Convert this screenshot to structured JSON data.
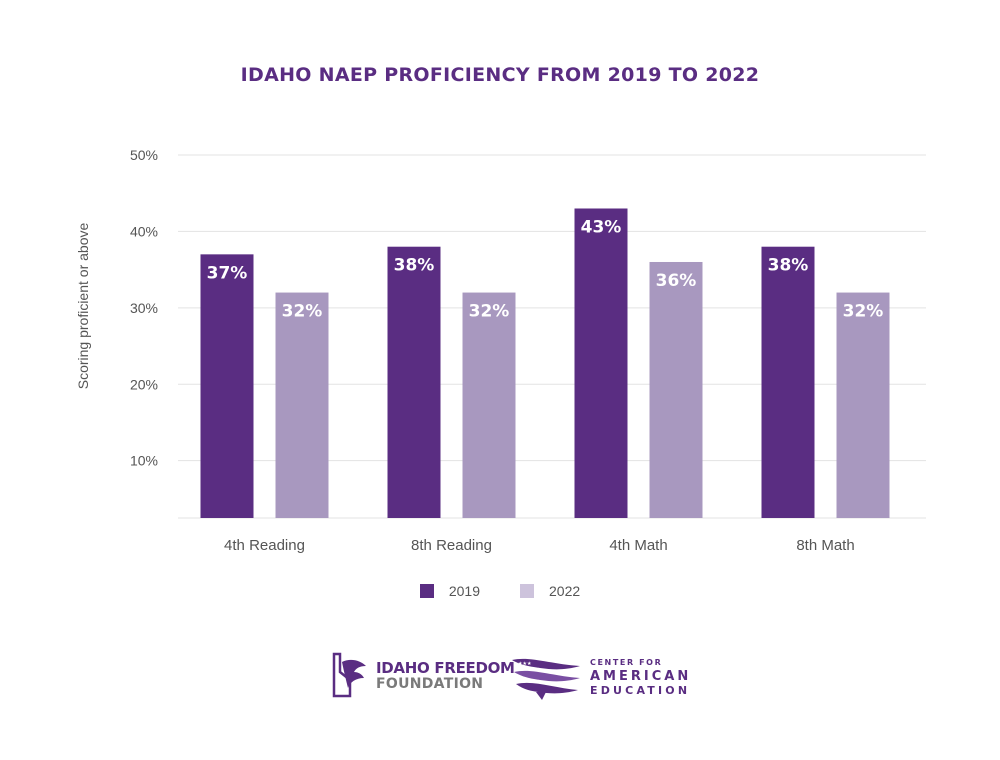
{
  "chart_data": {
    "type": "bar",
    "title": "IDAHO NAEP PROFICIENCY FROM 2019 TO 2022",
    "xlabel": "",
    "ylabel": "Scoring proficient or above",
    "categories": [
      "4th Reading",
      "8th Reading",
      "4th Math",
      "8th Math"
    ],
    "series": [
      {
        "name": "2019",
        "values": [
          37,
          38,
          43,
          38
        ],
        "labels": [
          "37%",
          "38%",
          "43%",
          "38%"
        ],
        "color": "#5a2d82"
      },
      {
        "name": "2022",
        "values": [
          32,
          32,
          36,
          32
        ],
        "labels": [
          "32%",
          "32%",
          "36%",
          "32%"
        ],
        "color": "#a898bf"
      }
    ],
    "ylim": [
      2.5,
      50
    ],
    "yticks": [
      10,
      20,
      30,
      40,
      50
    ],
    "ytick_labels": [
      "10%",
      "20%",
      "30%",
      "40%",
      "50%"
    ],
    "grid": true,
    "legend_position": "bottom-center"
  },
  "legend": {
    "items": [
      {
        "label": "2019",
        "color": "#5a2d82"
      },
      {
        "label": "2022",
        "color": "#cdc3dc"
      }
    ]
  },
  "logos": {
    "iff_line1": "IDAHO FREEDOM",
    "iff_line2": "FOUNDATION",
    "cae_line1": "CENTER FOR",
    "cae_line2": "AMERICAN",
    "cae_line3": "EDUCATION"
  }
}
